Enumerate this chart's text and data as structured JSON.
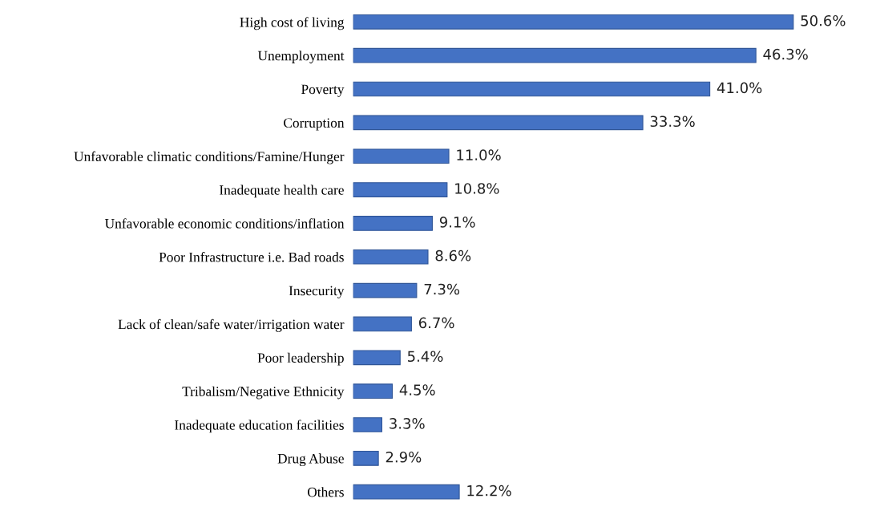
{
  "chart_data": {
    "type": "bar",
    "orientation": "horizontal",
    "categories": [
      "High cost of living",
      "Unemployment",
      "Poverty",
      "Corruption",
      "Unfavorable climatic conditions/Famine/Hunger",
      "Inadequate health care",
      "Unfavorable economic conditions/inflation",
      "Poor Infrastructure i.e. Bad roads",
      "Insecurity",
      "Lack of clean/safe water/irrigation water",
      "Poor leadership",
      "Tribalism/Negative Ethnicity",
      "Inadequate education facilities",
      "Drug Abuse",
      "Others"
    ],
    "values": [
      50.6,
      46.3,
      41.0,
      33.3,
      11.0,
      10.8,
      9.1,
      8.6,
      7.3,
      6.7,
      5.4,
      4.5,
      3.3,
      2.9,
      12.2
    ],
    "value_labels": [
      "50.6%",
      "46.3%",
      "41.0%",
      "33.3%",
      "11.0%",
      "10.8%",
      "9.1%",
      "8.6%",
      "7.3%",
      "6.7%",
      "5.4%",
      "4.5%",
      "3.3%",
      "2.9%",
      "12.2%"
    ],
    "color": "#4472c4",
    "grid": false,
    "legend": false
  }
}
